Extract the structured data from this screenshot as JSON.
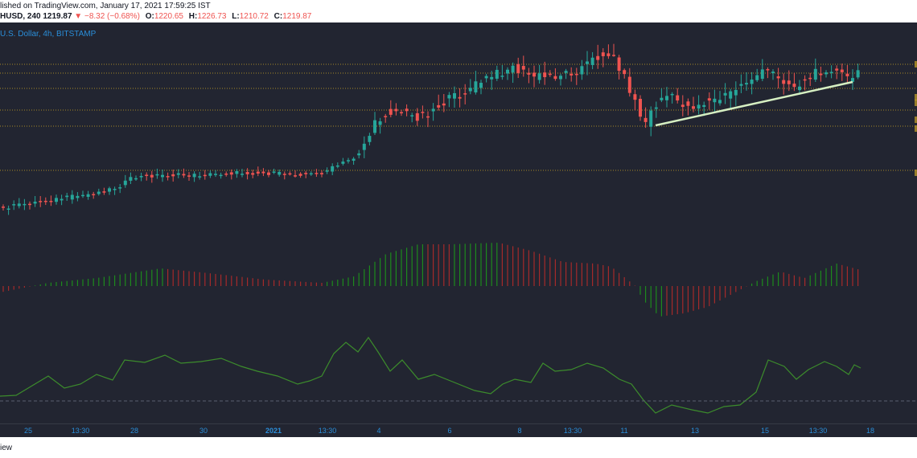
{
  "header": {
    "published": "lished on TradingView.com, January 17, 2021 17:59:25 IST",
    "symbol": "HUSD, 240",
    "price": "1219.87",
    "change": "▼ −8.32 (−0.68%)",
    "open_label": "O:",
    "open": "1220.65",
    "high_label": "H:",
    "high": "1226.73",
    "low_label": "L:",
    "low": "1210.72",
    "close_label": "C:",
    "close": "1219.87"
  },
  "chart": {
    "symbol_title": "U.S. Dollar, 4h, BITSTAMP"
  },
  "time_axis": {
    "ticks": [
      "25",
      "13:30",
      "28",
      "30",
      "2021",
      "13:30",
      "4",
      "6",
      "8",
      "13:30",
      "11",
      "13",
      "15",
      "13:30",
      "18"
    ]
  },
  "footer": {
    "text": "iew"
  },
  "colors": {
    "background": "#222531",
    "up": "#26a69a",
    "down": "#ef5350",
    "histogram_up": "#1d8a1d",
    "histogram_down": "#a52a2a",
    "oscillator": "#3c8c2c",
    "trendline": "#d6efc2",
    "level_lines": "#c9a227",
    "accent_text": "#2a8ed9"
  }
}
